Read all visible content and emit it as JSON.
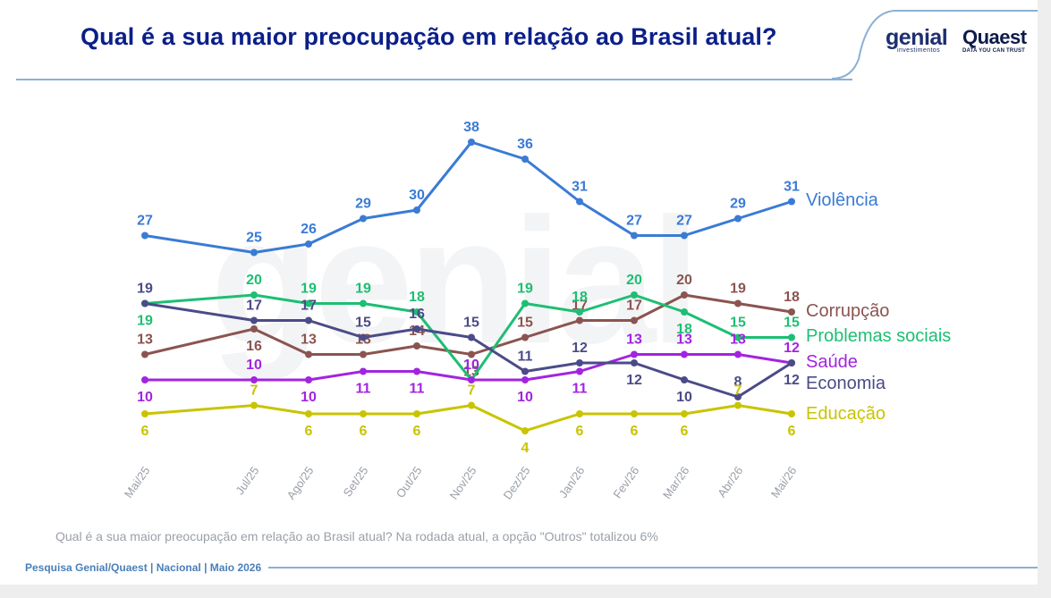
{
  "header": {
    "title": "Qual é a sua maior preocupação em relação ao Brasil atual?",
    "logo_genial": "genial",
    "logo_genial_sub": "investimentos",
    "logo_quaest": "Quaest",
    "logo_quaest_sub": "DATA YOU CAN TRUST"
  },
  "footnote": "Qual é a sua maior preocupação em relação ao Brasil atual? Na rodada atual, a opção \"Outros\" totalizou 6%",
  "source": "Pesquisa Genial/Quaest | Nacional | Maio 2026",
  "chart_data": {
    "type": "line",
    "title": "Qual é a sua maior preocupação em relação ao Brasil atual?",
    "categories": [
      "Mai/25",
      "Jul/25",
      "Ago/25",
      "Set/25",
      "Out/25",
      "Nov/25",
      "Dez/25",
      "Jan/26",
      "Fev/26",
      "Mar/26",
      "Abr/26",
      "Mai/26"
    ],
    "ylim": [
      0,
      40
    ],
    "grid": false,
    "legend": "right, at line ends",
    "series": [
      {
        "name": "Violência",
        "color": "#3a7bd5",
        "values": [
          27,
          25,
          26,
          29,
          30,
          38,
          36,
          31,
          27,
          27,
          29,
          31
        ]
      },
      {
        "name": "Corrupção",
        "color": "#8b5450",
        "values": [
          13,
          16,
          13,
          13,
          14,
          13,
          15,
          17,
          17,
          20,
          19,
          18
        ]
      },
      {
        "name": "Problemas sociais",
        "color": "#1dbf73",
        "values": [
          19,
          20,
          19,
          19,
          18,
          10,
          19,
          18,
          20,
          18,
          15,
          15
        ]
      },
      {
        "name": "Saúde",
        "color": "#a324e0",
        "values": [
          10,
          10,
          10,
          11,
          11,
          10,
          10,
          11,
          13,
          13,
          13,
          12
        ]
      },
      {
        "name": "Economia",
        "color": "#4b4b88",
        "values": [
          19,
          17,
          17,
          15,
          16,
          15,
          11,
          12,
          12,
          10,
          8,
          12
        ]
      },
      {
        "name": "Educação",
        "color": "#c9c400",
        "values": [
          6,
          7,
          6,
          6,
          6,
          7,
          4,
          6,
          6,
          6,
          7,
          6
        ]
      }
    ]
  }
}
